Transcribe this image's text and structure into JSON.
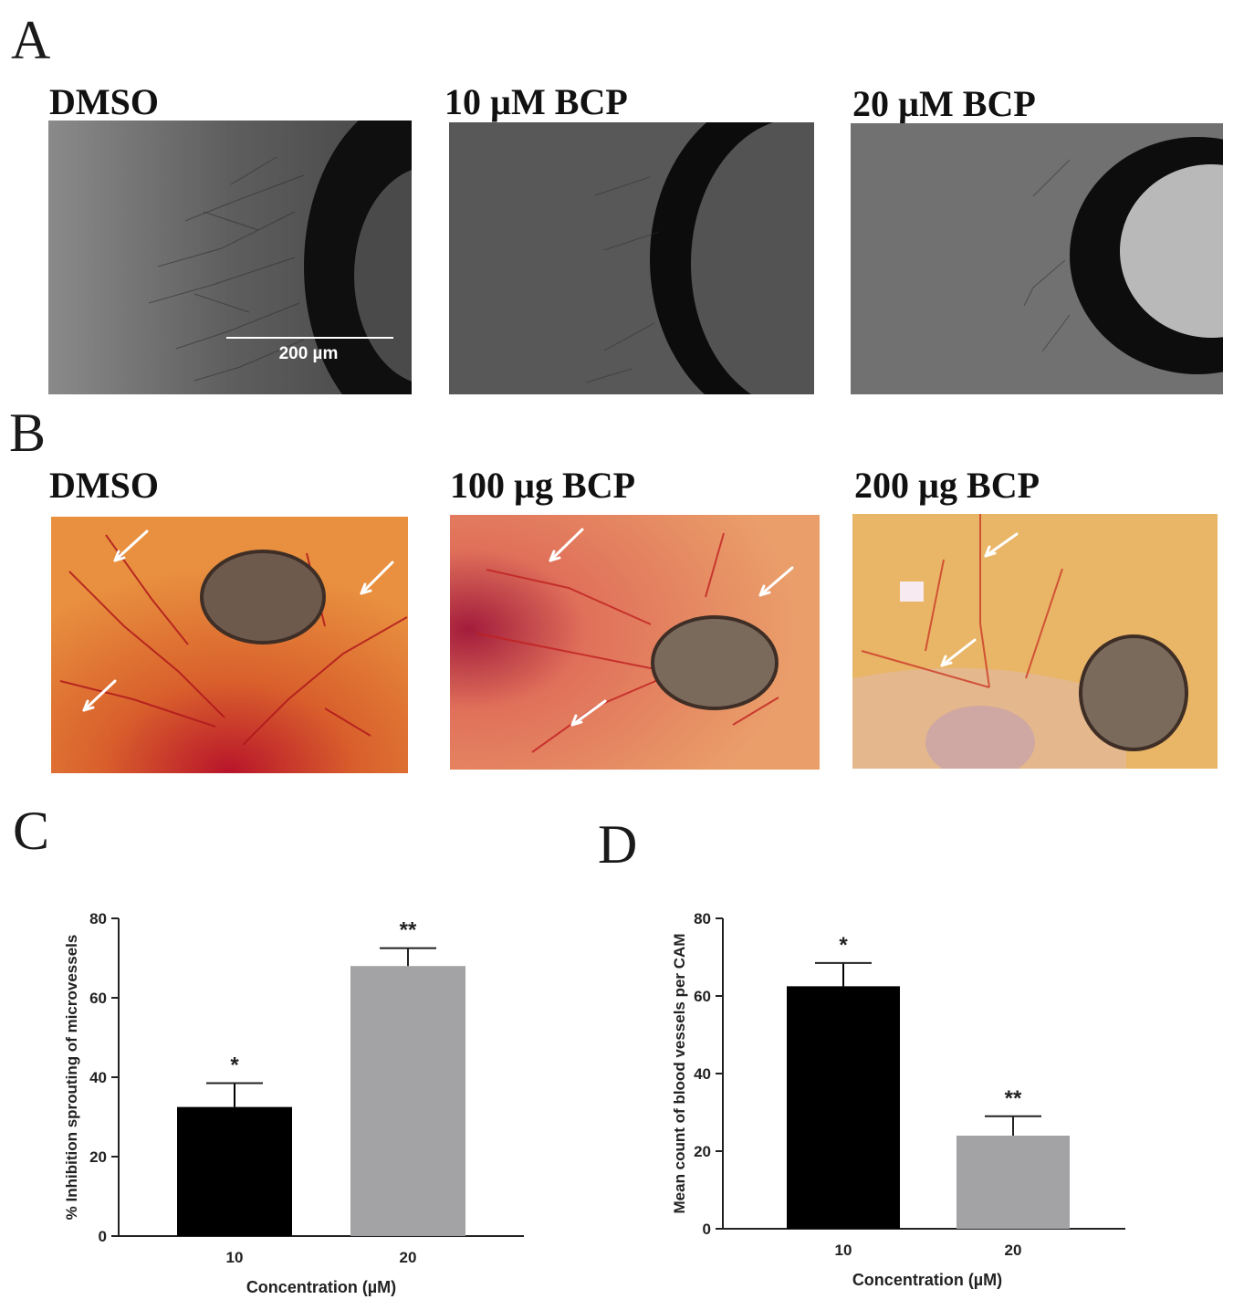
{
  "panels": {
    "a": {
      "letter": "A",
      "labels": [
        "DMSO",
        "10 µM BCP",
        "20 µM BCP"
      ],
      "scale_bar": "200 µm"
    },
    "b": {
      "letter": "B",
      "labels": [
        "DMSO",
        "100 µg BCP",
        "200 µg BCP"
      ]
    },
    "c": {
      "letter": "C"
    },
    "d": {
      "letter": "D"
    }
  },
  "colors": {
    "bar_10": "#000000",
    "bar_20": "#a3a3a6",
    "photo_gray": "#6b6b6b",
    "photo_dark": "#0c0c0c",
    "cam_orange": "#e59a4a",
    "vessel_red": "#c81e1e"
  },
  "chart_data": [
    {
      "type": "bar",
      "title": "",
      "xlabel": "Concentration (µM)",
      "ylabel": "% Inhibition sprouting of microvessels",
      "categories": [
        "10",
        "20"
      ],
      "values": [
        32.5,
        68
      ],
      "errors": [
        6,
        4.5
      ],
      "significance": [
        "*",
        "**"
      ],
      "ylim": [
        0,
        80
      ],
      "yticks": [
        0,
        20,
        40,
        60,
        80
      ],
      "bar_colors": [
        "#000000",
        "#a3a3a6"
      ]
    },
    {
      "type": "bar",
      "title": "",
      "xlabel": "Concentration (µM)",
      "ylabel": "Mean count of blood vessels per CAM",
      "categories": [
        "10",
        "20"
      ],
      "values": [
        62.5,
        24
      ],
      "errors": [
        6,
        5
      ],
      "significance": [
        "*",
        "**"
      ],
      "ylim": [
        0,
        80
      ],
      "yticks": [
        0,
        20,
        40,
        60,
        80
      ],
      "bar_colors": [
        "#000000",
        "#a3a3a6"
      ]
    }
  ]
}
